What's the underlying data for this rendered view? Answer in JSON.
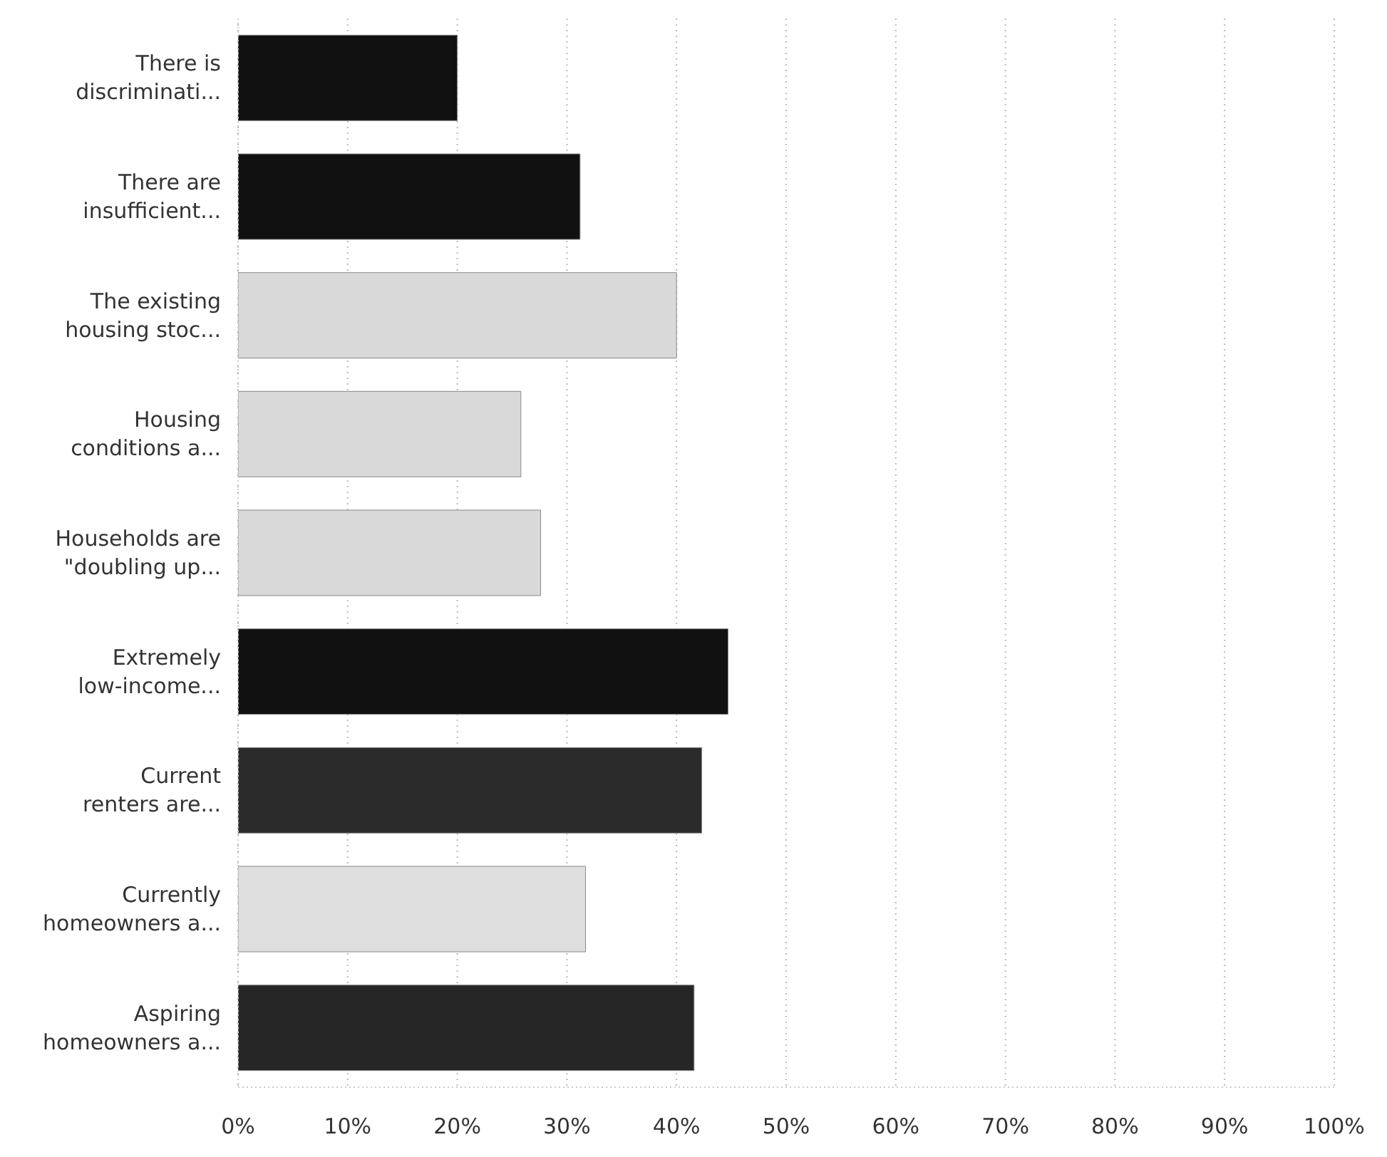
{
  "chart_data": {
    "type": "bar",
    "orientation": "horizontal",
    "categories": [
      "There is discriminati...",
      "There are insufficient...",
      "The existing housing stoc...",
      "Housing conditions a...",
      "Households are \"doubling up...",
      "Extremely low-income...",
      "Current renters are...",
      "Currently homeowners a...",
      "Aspiring homeowners a..."
    ],
    "values": [
      20,
      31.2,
      40,
      25.8,
      27.6,
      44.7,
      42.3,
      31.7,
      41.6
    ],
    "colors": [
      "#111111",
      "#111111",
      "#d9d9d9",
      "#d9d9d9",
      "#d9d9d9",
      "#111111",
      "#2b2b2b",
      "#dedede",
      "#262626"
    ],
    "xlim": [
      0,
      100
    ],
    "xticks": [
      {
        "value": 0,
        "label": "0%"
      },
      {
        "value": 10,
        "label": "10%"
      },
      {
        "value": 20,
        "label": "20%"
      },
      {
        "value": 30,
        "label": "30%"
      },
      {
        "value": 40,
        "label": "40%"
      },
      {
        "value": 50,
        "label": "50%"
      },
      {
        "value": 60,
        "label": "60%"
      },
      {
        "value": 70,
        "label": "70%"
      },
      {
        "value": 80,
        "label": "80%"
      },
      {
        "value": 90,
        "label": "90%"
      },
      {
        "value": 100,
        "label": "100%"
      }
    ],
    "grid": "x"
  }
}
